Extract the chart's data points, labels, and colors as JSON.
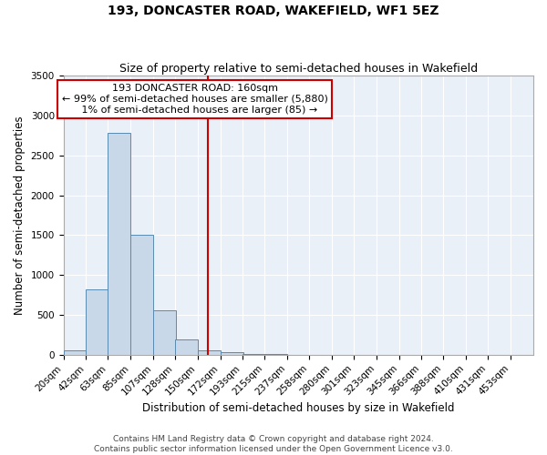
{
  "title": "193, DONCASTER ROAD, WAKEFIELD, WF1 5EZ",
  "subtitle": "Size of property relative to semi-detached houses in Wakefield",
  "xlabel": "Distribution of semi-detached houses by size in Wakefield",
  "ylabel": "Number of semi-detached properties",
  "bar_color": "#c8d8e8",
  "bar_edge_color": "#5a8ab0",
  "background_color": "#eaf0f8",
  "categories": [
    "20sqm",
    "42sqm",
    "63sqm",
    "85sqm",
    "107sqm",
    "128sqm",
    "150sqm",
    "172sqm",
    "193sqm",
    "215sqm",
    "237sqm",
    "258sqm",
    "280sqm",
    "301sqm",
    "323sqm",
    "345sqm",
    "366sqm",
    "388sqm",
    "410sqm",
    "431sqm",
    "453sqm"
  ],
  "values": [
    60,
    820,
    2780,
    1500,
    560,
    190,
    60,
    30,
    10,
    5,
    2,
    0,
    0,
    0,
    0,
    0,
    0,
    0,
    0,
    0,
    0
  ],
  "ylim": [
    0,
    3500
  ],
  "yticks": [
    0,
    500,
    1000,
    1500,
    2000,
    2500,
    3000,
    3500
  ],
  "property_line_label": "193 DONCASTER ROAD: 160sqm",
  "annotation_smaller": "← 99% of semi-detached houses are smaller (5,880)",
  "annotation_larger": "1% of semi-detached houses are larger (85) →",
  "bin_edges": [
    20,
    42,
    63,
    85,
    107,
    128,
    150,
    172,
    193,
    215,
    237,
    258,
    280,
    301,
    323,
    345,
    366,
    388,
    410,
    431,
    453
  ],
  "bin_width": 22,
  "footer1": "Contains HM Land Registry data © Crown copyright and database right 2024.",
  "footer2": "Contains public sector information licensed under the Open Government Licence v3.0.",
  "vline_color": "#cc0000",
  "vline_x": 160,
  "box_color": "#cc0000",
  "title_fontsize": 10,
  "subtitle_fontsize": 9,
  "axis_label_fontsize": 8.5,
  "tick_fontsize": 7.5,
  "annotation_fontsize": 8,
  "footer_fontsize": 6.5
}
